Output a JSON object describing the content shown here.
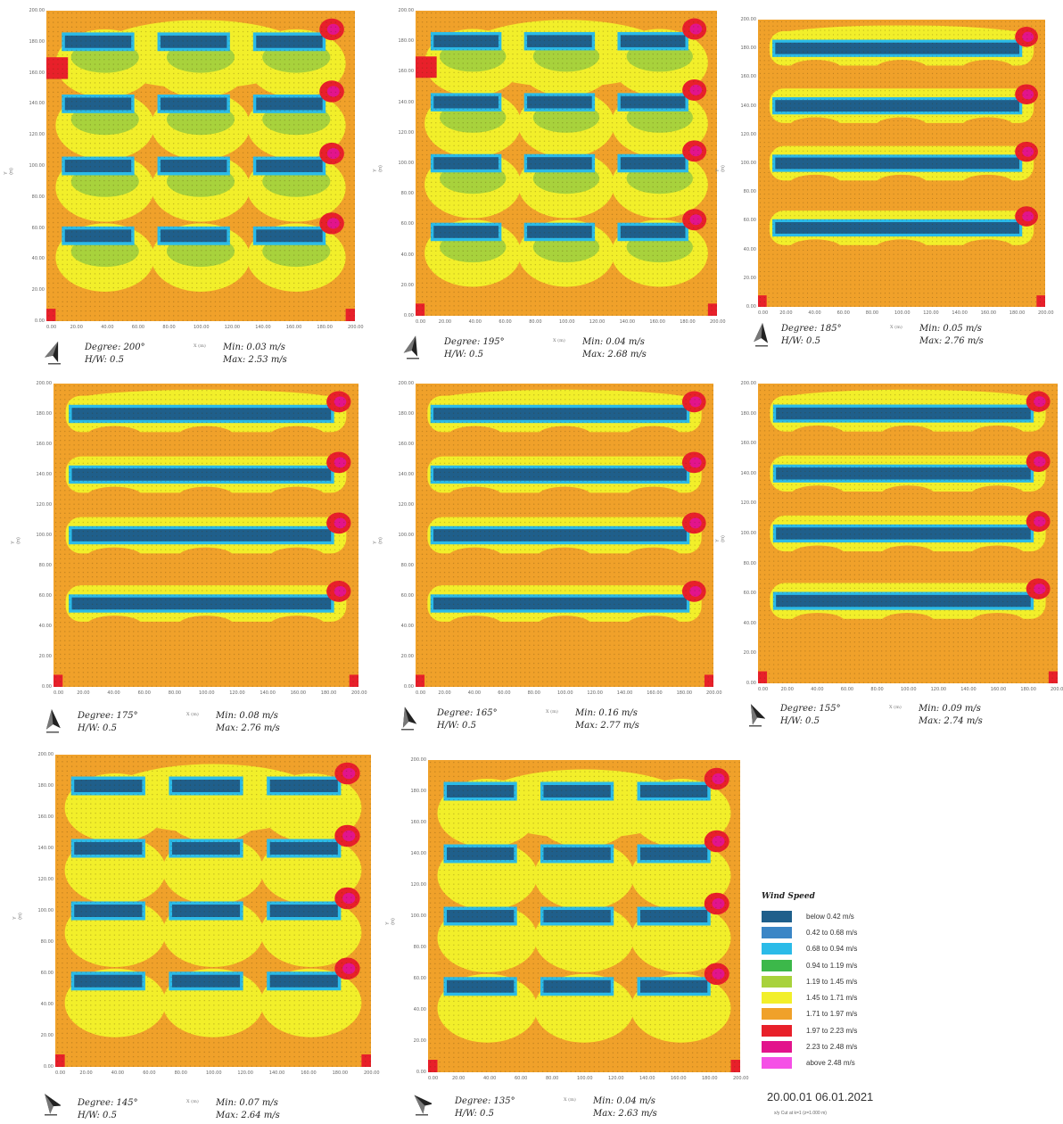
{
  "panels": [
    {
      "degree": "Degree: 200°",
      "hw": "H/W: 0.5",
      "min": "Min: 0.03 m/s",
      "max": "Max: 2.53 m/s",
      "angle": 200,
      "pattern": "oblique"
    },
    {
      "degree": "Degree: 195°",
      "hw": "H/W: 0.5",
      "min": "Min: 0.04 m/s",
      "max": "Max: 2.68 m/s",
      "angle": 195,
      "pattern": "oblique"
    },
    {
      "degree": "Degree: 185°",
      "hw": "H/W: 0.5",
      "min": "Min: 0.05 m/s",
      "max": "Max: 2.76 m/s",
      "angle": 185,
      "pattern": "parallel"
    },
    {
      "degree": "Degree: 175°",
      "hw": "H/W: 0.5",
      "min": "Min: 0.08 m/s",
      "max": "Max: 2.76 m/s",
      "angle": 175,
      "pattern": "parallel"
    },
    {
      "degree": "Degree: 165°",
      "hw": "H/W: 0.5",
      "min": "Min: 0.16 m/s",
      "max": "Max: 2.77 m/s",
      "angle": 165,
      "pattern": "parallel"
    },
    {
      "degree": "Degree: 155°",
      "hw": "H/W: 0.5",
      "min": "Min: 0.09 m/s",
      "max": "Max: 2.74 m/s",
      "angle": 155,
      "pattern": "parallel"
    },
    {
      "degree": "Degree: 145°",
      "hw": "H/W: 0.5",
      "min": "Min: 0.07 m/s",
      "max": "Max: 2.64 m/s",
      "angle": 145,
      "pattern": "oblique"
    },
    {
      "degree": "Degree: 135°",
      "hw": "H/W: 0.5",
      "min": "Min: 0.04 m/s",
      "max": "Max: 2.63 m/s",
      "angle": 135,
      "pattern": "oblique"
    }
  ],
  "axis": {
    "ticks": [
      "0.00",
      "20.00",
      "40.00",
      "60.00",
      "80.00",
      "100.00",
      "120.00",
      "140.00",
      "160.00",
      "180.00",
      "200.00"
    ],
    "xunit": "X (m)",
    "yunit": "Y (m)"
  },
  "legend": {
    "title": "Wind Speed",
    "items": [
      {
        "label": "below 0.42 m/s",
        "color": "#1f5f8b"
      },
      {
        "label": "0.42 to 0.68 m/s",
        "color": "#3b86c6"
      },
      {
        "label": "0.68 to 0.94 m/s",
        "color": "#2bbbe8"
      },
      {
        "label": "0.94 to 1.19 m/s",
        "color": "#3cb84a"
      },
      {
        "label": "1.19 to 1.45 m/s",
        "color": "#a8d23c"
      },
      {
        "label": "1.45 to 1.71 m/s",
        "color": "#f2ef2a"
      },
      {
        "label": "1.71 to 1.97 m/s",
        "color": "#f0a12a"
      },
      {
        "label": "1.97 to 2.23 m/s",
        "color": "#e8202a"
      },
      {
        "label": "2.23 to 2.48 m/s",
        "color": "#e2148c"
      },
      {
        "label": "above 2.48 m/s",
        "color": "#f550e6"
      }
    ]
  },
  "footer": {
    "timestamp": "20.00.01 06.01.2021",
    "cut": "x/y Cut at k=1 (z=1.000 m)"
  },
  "chart_data": {
    "type": "heatmap",
    "xlabel": "X (m)",
    "ylabel": "Y (m)",
    "xlim": [
      0,
      200
    ],
    "ylim": [
      0,
      200
    ],
    "grid": false,
    "legend_placement": "bottom-right",
    "series": [
      {
        "name": "Degree: 200°",
        "min_ms": 0.03,
        "max_ms": 2.53
      },
      {
        "name": "Degree: 195°",
        "min_ms": 0.04,
        "max_ms": 2.68
      },
      {
        "name": "Degree: 185°",
        "min_ms": 0.05,
        "max_ms": 2.76
      },
      {
        "name": "Degree: 175°",
        "min_ms": 0.08,
        "max_ms": 2.76
      },
      {
        "name": "Degree: 165°",
        "min_ms": 0.16,
        "max_ms": 2.77
      },
      {
        "name": "Degree: 155°",
        "min_ms": 0.09,
        "max_ms": 2.74
      },
      {
        "name": "Degree: 145°",
        "min_ms": 0.07,
        "max_ms": 2.64
      },
      {
        "name": "Degree: 135°",
        "min_ms": 0.04,
        "max_ms": 2.63
      }
    ],
    "buildings_y_m": [
      55,
      100,
      140,
      180
    ],
    "title": ""
  }
}
